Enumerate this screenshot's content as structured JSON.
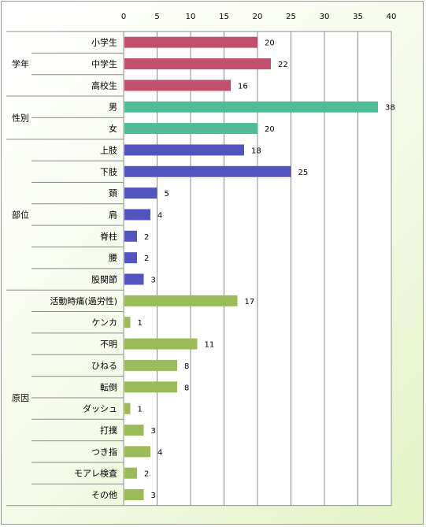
{
  "chart_data": {
    "type": "bar",
    "orientation": "horizontal",
    "title": "",
    "xlabel": "",
    "ylabel": "",
    "xlim": [
      0,
      40
    ],
    "ticks": [
      "0",
      "5",
      "10",
      "15",
      "20",
      "25",
      "30",
      "35",
      "40"
    ],
    "grid": true,
    "legend": "none",
    "groups": [
      {
        "name": "学年",
        "color": "#c0506e",
        "categories": [
          "小学生",
          "中学生",
          "高校生"
        ],
        "values": [
          20,
          22,
          16
        ]
      },
      {
        "name": "性別",
        "color": "#4fbb98",
        "categories": [
          "男",
          "女"
        ],
        "values": [
          38,
          20
        ]
      },
      {
        "name": "部位",
        "color": "#5454c0",
        "categories": [
          "上肢",
          "下肢",
          "頚",
          "肩",
          "脊柱",
          "腰",
          "股関節"
        ],
        "values": [
          18,
          25,
          5,
          4,
          2,
          2,
          3
        ]
      },
      {
        "name": "原因",
        "color": "#9bbb59",
        "categories": [
          "活動時痛(過労性)",
          "ケンカ",
          "不明",
          "ひねる",
          "転倒",
          "ダッシュ",
          "打撲",
          "つき指",
          "モアレ検査",
          "その他"
        ],
        "values": [
          17,
          1,
          11,
          8,
          8,
          1,
          3,
          4,
          2,
          3
        ]
      }
    ]
  }
}
